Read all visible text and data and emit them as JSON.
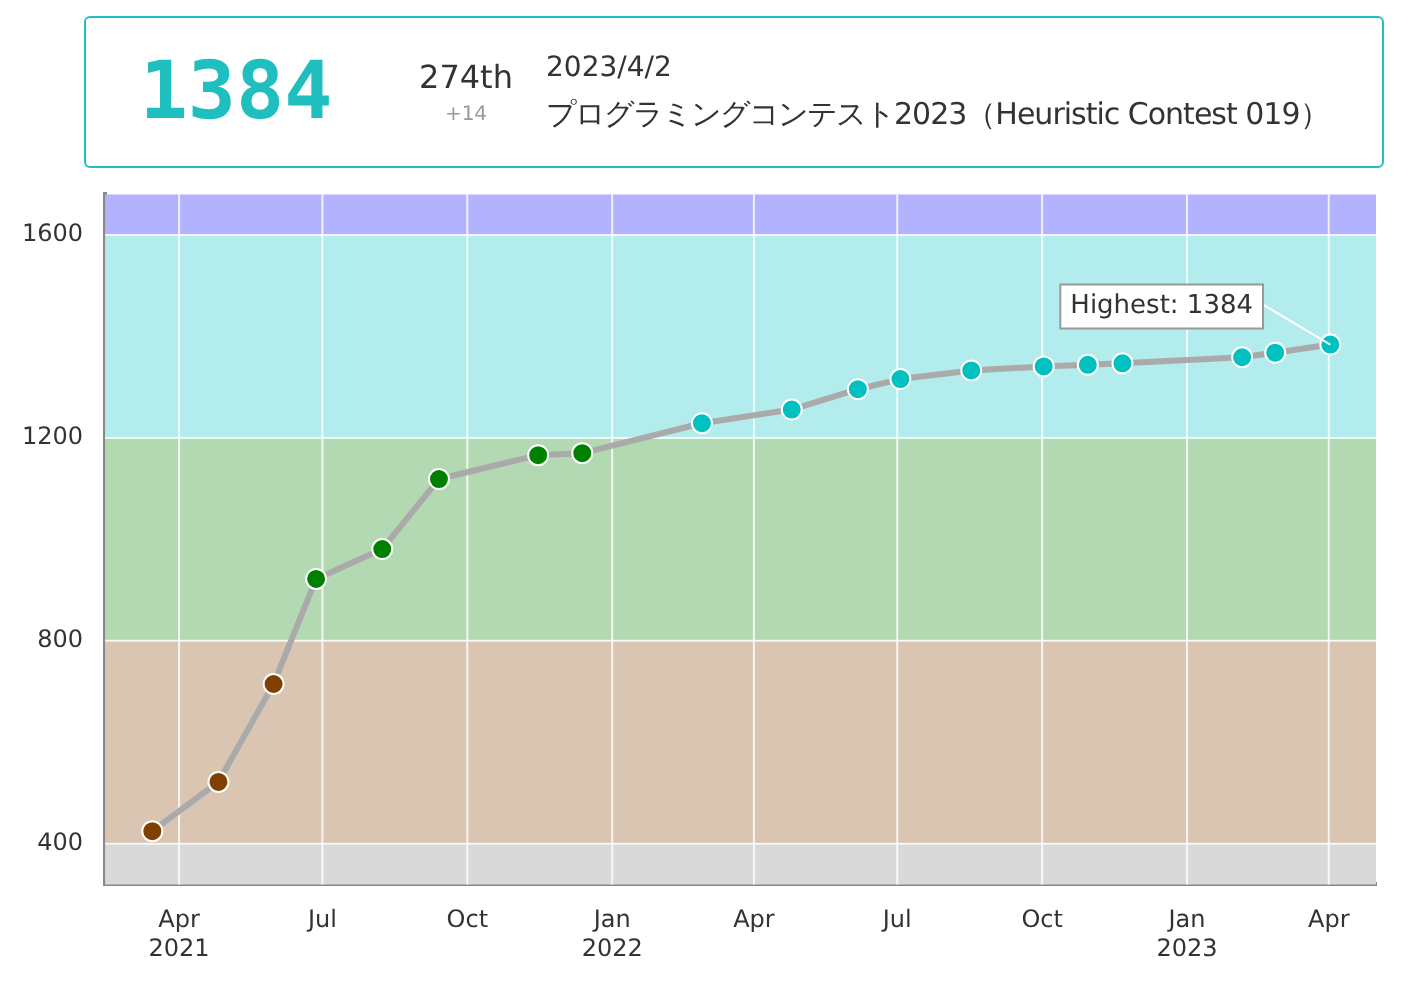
{
  "chart_data": {
    "type": "line",
    "title": "プログラミングコンテスト2023（Heuristic Contest 019）",
    "subtitle": "2023/4/2",
    "annotations": [
      "1384",
      "274th",
      "+14",
      {
        "text": "Highest: 1384",
        "x": "2023-04-02",
        "y": 1384
      }
    ],
    "x": [
      "2021-03-15",
      "2021-04-26",
      "2021-05-31",
      "2021-06-27",
      "2021-08-08",
      "2021-09-13",
      "2021-11-15",
      "2021-12-13",
      "2022-02-27",
      "2022-04-25",
      "2022-06-06",
      "2022-07-03",
      "2022-08-17",
      "2022-10-02",
      "2022-10-30",
      "2022-11-21",
      "2023-02-05",
      "2023-02-26",
      "2023-04-02"
    ],
    "series": [
      {
        "color": "#aaaaaa",
        "colors": [
          "#804000",
          "#804000",
          "#804000",
          "#008000",
          "#008000",
          "#008000",
          "#008000",
          "#008000",
          "#00c0c0",
          "#00c0c0",
          "#00c0c0",
          "#00c0c0",
          "#00c0c0",
          "#00c0c0",
          "#00c0c0",
          "#00c0c0",
          "#00c0c0",
          "#00c0c0",
          "#00c0c0"
        ],
        "values": [
          425,
          522,
          715,
          922,
          981,
          1119,
          1166,
          1170,
          1229,
          1256,
          1296,
          1316,
          1333,
          1341,
          1344,
          1347,
          1359,
          1368,
          1384
        ]
      }
    ],
    "xlim": [
      "2021-02-13",
      "2023-05-01"
    ],
    "xticks": [
      {
        "value": "2021-04-01",
        "label": "Apr\n2021"
      },
      {
        "value": "2021-07-01",
        "label": "Jul"
      },
      {
        "value": "2021-10-01",
        "label": "Oct"
      },
      {
        "value": "2022-01-01",
        "label": "Jan\n2022"
      },
      {
        "value": "2022-04-01",
        "label": "Apr"
      },
      {
        "value": "2022-07-01",
        "label": "Jul"
      },
      {
        "value": "2022-10-01",
        "label": "Oct"
      },
      {
        "value": "2023-01-01",
        "label": "Jan\n2023"
      },
      {
        "value": "2023-04-01",
        "label": "Apr"
      }
    ],
    "ylim": [
      320,
      1680
    ],
    "yticks": [
      400,
      800,
      1200,
      1600
    ],
    "bands": [
      {
        "axis": "y",
        "from": 320,
        "to": 400,
        "color": "#d9d9d9"
      },
      {
        "axis": "y",
        "from": 400,
        "to": 800,
        "color": "#d9c5b2"
      },
      {
        "axis": "y",
        "from": 800,
        "to": 1200,
        "color": "#b2d9b2"
      },
      {
        "axis": "y",
        "from": 1200,
        "to": 1600,
        "color": "#b2ecec"
      },
      {
        "axis": "y",
        "from": 1600,
        "to": 1680,
        "color": "#b2b2ff"
      }
    ],
    "grid": true,
    "legend": false,
    "marker": "circle",
    "line_style": "solid"
  }
}
